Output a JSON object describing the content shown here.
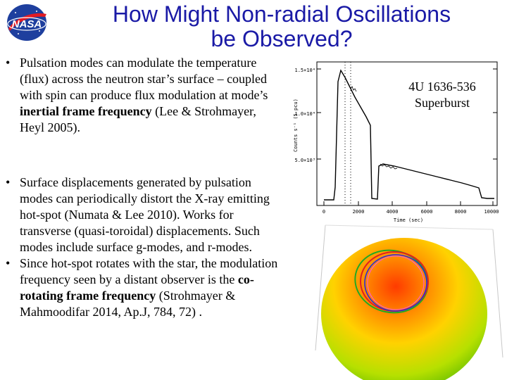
{
  "logo": {
    "text": "NASA"
  },
  "title": {
    "line1": "How Might Non-radial Oscillations",
    "line2": "be Observed?"
  },
  "bullets": [
    {
      "marker": "•",
      "parts": [
        {
          "text": "Pulsation modes can modulate the temperature (flux) across the neutron star’s surface – coupled with spin can produce flux modulation at mode’s ",
          "bold": false
        },
        {
          "text": "inertial frame frequency",
          "bold": true
        },
        {
          "text": " (Lee & Strohmayer, Heyl 2005).",
          "bold": false
        }
      ]
    },
    {
      "marker": "•",
      "parts": [
        {
          "text": "Surface displacements generated by pulsation modes can periodically distort the X-ray emitting hot-spot (Numata & Lee 2010). Works for transverse (quasi-toroidal) displacements. Such modes include surface g-modes, and r-modes.",
          "bold": false
        }
      ]
    },
    {
      "marker": "•",
      "parts": [
        {
          "text": "Since hot-spot rotates with the star, the modulation frequency seen by a distant observer is the ",
          "bold": false
        },
        {
          "text": "co-rotating frame frequency",
          "bold": true
        },
        {
          "text": " (Strohmayer & Mahmoodifar 2014, Ap.J, 784, 72) .",
          "bold": false
        }
      ]
    }
  ],
  "plot": {
    "ylabel": "Counts s⁻¹ (5 pcu)",
    "xlabel": "Time (sec)",
    "yticks": [
      "1.5×10⁴",
      "1.0×10⁴",
      "5.0×10³"
    ],
    "xticks": [
      "0",
      "2000",
      "4000",
      "6000",
      "8000",
      "10000"
    ]
  },
  "plot_label": {
    "line1": "4U 1636-536",
    "line2": "Superburst"
  },
  "colors": {
    "title": "#1a1aa6",
    "sphere_hot": "#ff3b00",
    "sphere_mid": "#ffd200",
    "sphere_cool": "#7ad400"
  }
}
